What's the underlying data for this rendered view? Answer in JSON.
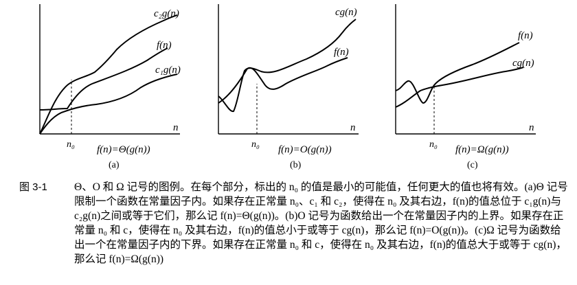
{
  "panels": [
    {
      "id": "a",
      "labels": {
        "upper": "c₂g(n)",
        "f": "f(n)",
        "lower": "c₁g(n)",
        "n": "n",
        "n0": "n₀",
        "formula": "f(n)=Θ(g(n))",
        "tag": "(a)"
      }
    },
    {
      "id": "b",
      "labels": {
        "upper": "cg(n)",
        "f": "f(n)",
        "n": "n",
        "n0": "n₀",
        "formula": "f(n)=O(g(n))",
        "tag": "(b)"
      }
    },
    {
      "id": "c",
      "labels": {
        "f": "f(n)",
        "lower": "cg(n)",
        "n": "n",
        "n0": "n₀",
        "formula": "f(n)=Ω(g(n))",
        "tag": "(c)"
      }
    }
  ],
  "caption": {
    "number": "图 3-1",
    "text": "Θ、O 和 Ω 记号的图例。在每个部分，标出的 n₀ 的值是最小的可能值，任何更大的值也将有效。(a)Θ 记号限制一个函数在常量因子内。如果存在正常量 n₀、c₁ 和 c₂，使得在 n₀ 及其右边，f(n)的值总位于 c₁g(n)与 c₂g(n)之间或等于它们，那么记 f(n)=Θ(g(n))。(b)O 记号为函数给出一个在常量因子内的上界。如果存在正常量 n₀ 和 c，使得在 n₀ 及其右边，f(n)的值总小于或等于 cg(n)，那么记 f(n)=O(g(n))。(c)Ω 记号为函数给出一个在常量因子内的下界。如果存在正常量 n₀ 和 c，使得在 n₀ 及其右边，f(n)的值总大于或等于 cg(n)，那么记 f(n)=Ω(g(n))"
  }
}
